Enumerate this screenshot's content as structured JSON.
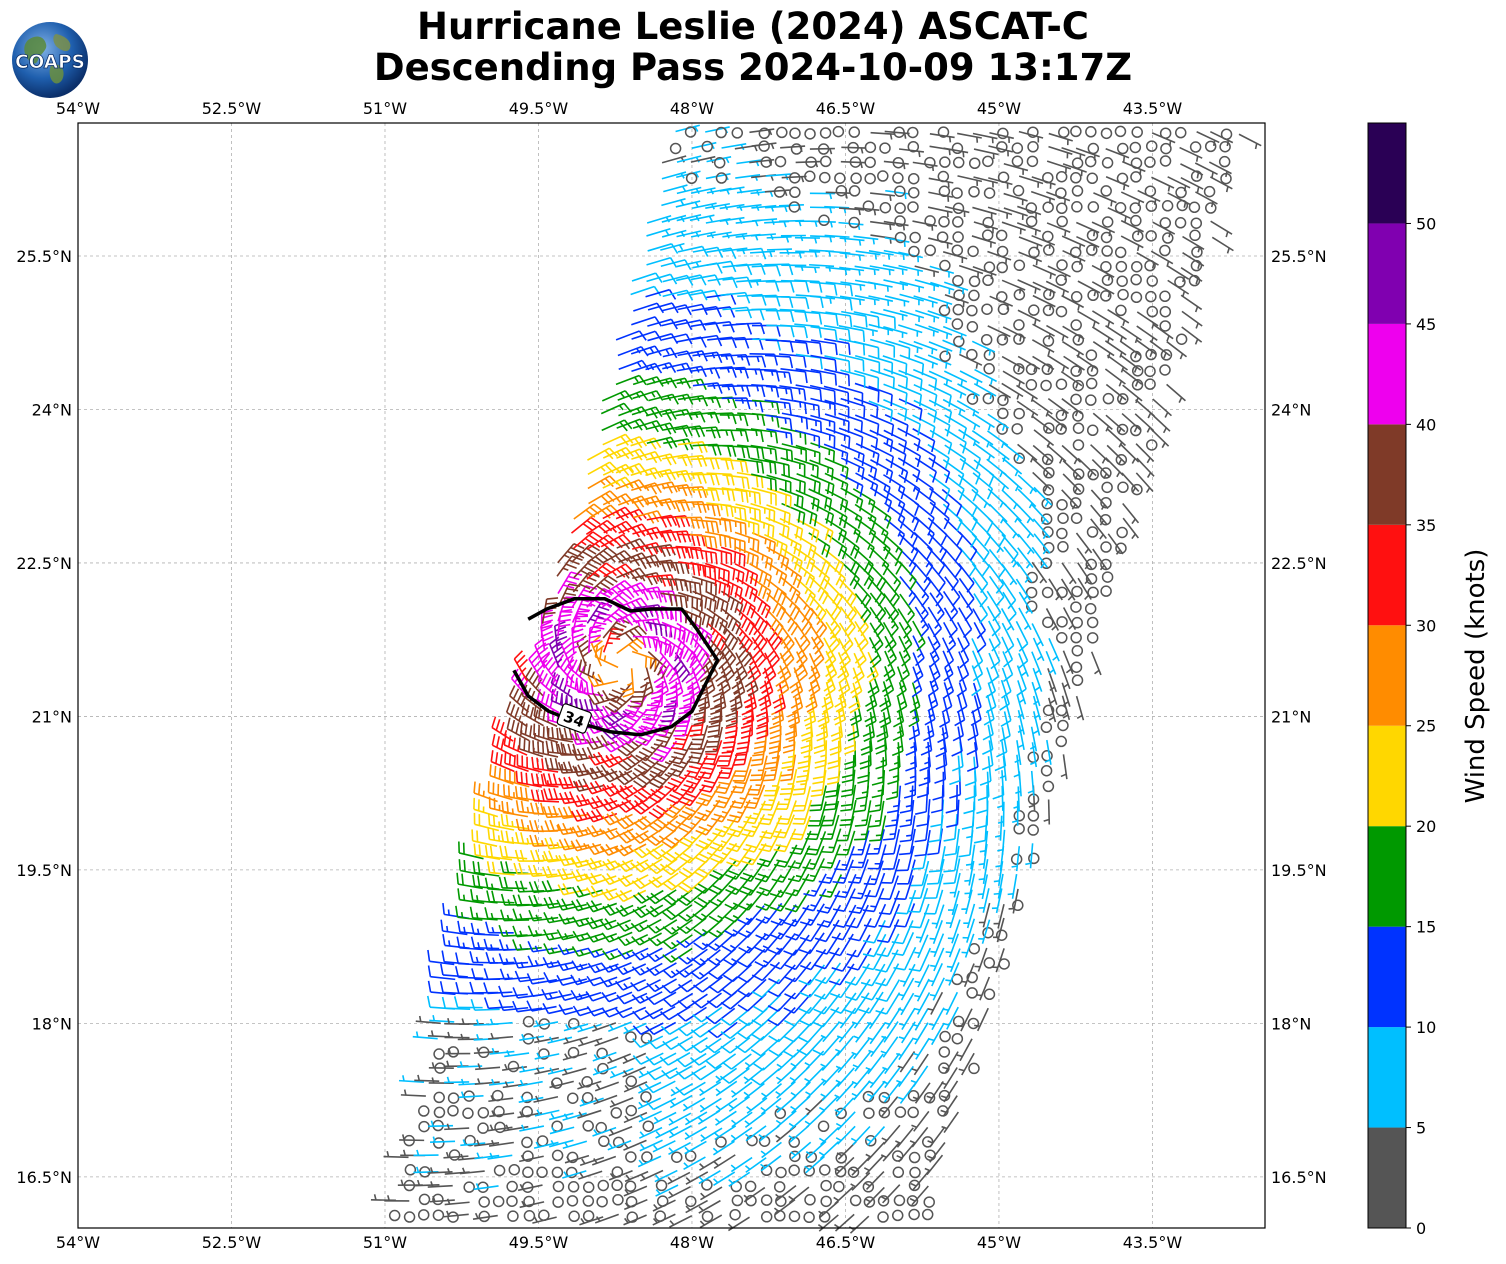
{
  "title": {
    "line1": "Hurricane Leslie (2024) ASCAT-C",
    "line2": "Descending Pass 2024-10-09 13:17Z"
  },
  "logo": {
    "text": "COAPS",
    "icon": "globe-logo-icon"
  },
  "map": {
    "lon_range": [
      -54.0,
      -42.4
    ],
    "lat_range": [
      16.0,
      26.8
    ],
    "lon_ticks": [
      {
        "value": -54.0,
        "label": "54°W"
      },
      {
        "value": -52.5,
        "label": "52.5°W"
      },
      {
        "value": -51.0,
        "label": "51°W"
      },
      {
        "value": -49.5,
        "label": "49.5°W"
      },
      {
        "value": -48.0,
        "label": "48°W"
      },
      {
        "value": -46.5,
        "label": "46.5°W"
      },
      {
        "value": -45.0,
        "label": "45°W"
      },
      {
        "value": -43.5,
        "label": "43.5°W"
      }
    ],
    "lat_ticks": [
      {
        "value": 25.5,
        "label": "25.5°N"
      },
      {
        "value": 24.0,
        "label": "24°N"
      },
      {
        "value": 22.5,
        "label": "22.5°N"
      },
      {
        "value": 21.0,
        "label": "21°N"
      },
      {
        "value": 19.5,
        "label": "19.5°N"
      },
      {
        "value": 18.0,
        "label": "18°N"
      },
      {
        "value": 16.5,
        "label": "16.5°N"
      }
    ],
    "grid": true,
    "storm_center": {
      "lon": -48.7,
      "lat": 21.5
    },
    "contour_34kt": {
      "label": "34",
      "points": [
        {
          "lon": -49.74,
          "lat": 21.45
        },
        {
          "lon": -49.6,
          "lat": 21.2
        },
        {
          "lon": -49.4,
          "lat": 21.05
        },
        {
          "lon": -49.15,
          "lat": 20.95
        },
        {
          "lon": -48.8,
          "lat": 20.85
        },
        {
          "lon": -48.5,
          "lat": 20.82
        },
        {
          "lon": -48.2,
          "lat": 20.9
        },
        {
          "lon": -48.0,
          "lat": 21.05
        },
        {
          "lon": -47.85,
          "lat": 21.35
        },
        {
          "lon": -47.75,
          "lat": 21.55
        },
        {
          "lon": -47.95,
          "lat": 21.85
        },
        {
          "lon": -48.1,
          "lat": 22.05
        },
        {
          "lon": -48.4,
          "lat": 22.05
        },
        {
          "lon": -48.6,
          "lat": 22.03
        },
        {
          "lon": -48.85,
          "lat": 22.15
        },
        {
          "lon": -49.15,
          "lat": 22.15
        },
        {
          "lon": -49.42,
          "lat": 22.05
        },
        {
          "lon": -49.6,
          "lat": 21.95
        }
      ]
    },
    "swath": {
      "corners": [
        {
          "lon": -51.0,
          "lat": 16.0
        },
        {
          "lon": -48.2,
          "lat": 26.8
        },
        {
          "lon": -42.6,
          "lat": 26.8
        },
        {
          "lon": -45.7,
          "lat": 16.0
        }
      ],
      "light_wind_region": {
        "lon_min": -51.0,
        "lat_max": 18.05,
        "lon_max": -48.4
      }
    }
  },
  "colorbar": {
    "label": "Wind Speed (knots)",
    "range": [
      0,
      55
    ],
    "bins": [
      {
        "from": 0,
        "to": 5,
        "color": "#555555"
      },
      {
        "from": 5,
        "to": 10,
        "color": "#00BFFF"
      },
      {
        "from": 10,
        "to": 15,
        "color": "#0033FF"
      },
      {
        "from": 15,
        "to": 20,
        "color": "#009900"
      },
      {
        "from": 20,
        "to": 25,
        "color": "#FFD700"
      },
      {
        "from": 25,
        "to": 30,
        "color": "#FF8C00"
      },
      {
        "from": 30,
        "to": 35,
        "color": "#FF1010"
      },
      {
        "from": 35,
        "to": 40,
        "color": "#7F3A28"
      },
      {
        "from": 40,
        "to": 45,
        "color": "#EE00EE"
      },
      {
        "from": 45,
        "to": 50,
        "color": "#8000B0"
      },
      {
        "from": 50,
        "to": 55,
        "color": "#2A0055"
      }
    ],
    "ticks": [
      {
        "value": 0,
        "label": "0"
      },
      {
        "value": 5,
        "label": "5"
      },
      {
        "value": 10,
        "label": "10"
      },
      {
        "value": 15,
        "label": "15"
      },
      {
        "value": 20,
        "label": "20"
      },
      {
        "value": 25,
        "label": "25"
      },
      {
        "value": 30,
        "label": "30"
      },
      {
        "value": 35,
        "label": "35"
      },
      {
        "value": 40,
        "label": "40"
      },
      {
        "value": 45,
        "label": "45"
      },
      {
        "value": 50,
        "label": "50"
      }
    ]
  }
}
